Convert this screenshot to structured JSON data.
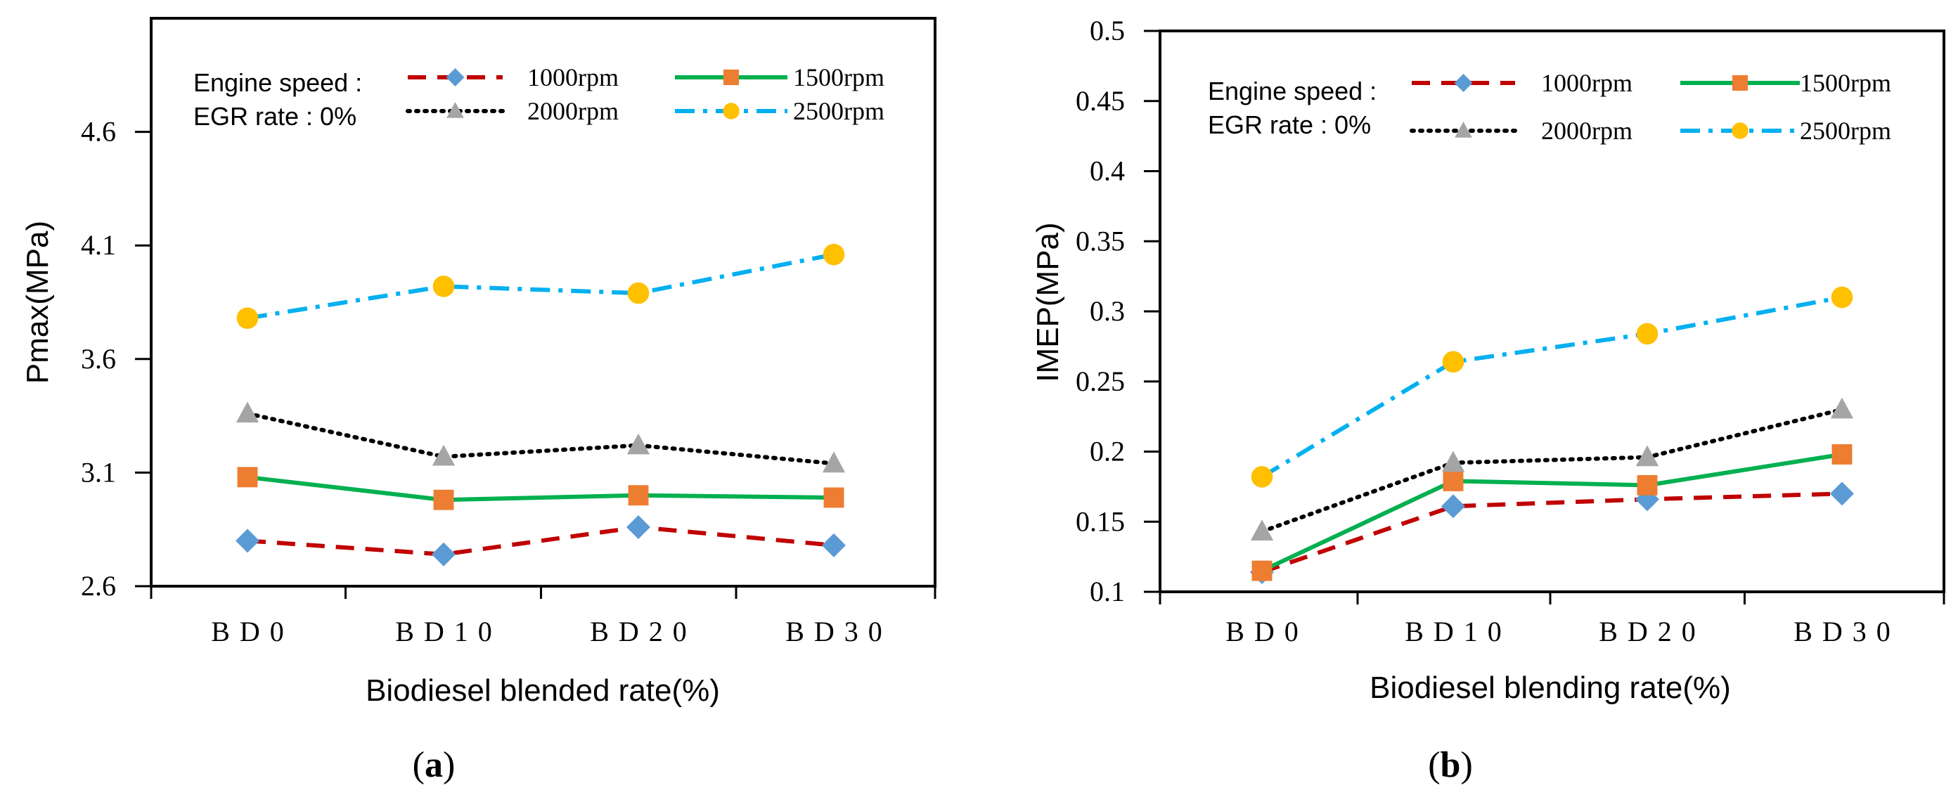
{
  "chart_data": [
    {
      "type": "line",
      "panel_label": "a",
      "xlabel": "Biodiesel blended rate(%)",
      "ylabel": "Pmax(MPa)",
      "categories": [
        "BD0",
        "BD10",
        "BD20",
        "BD30"
      ],
      "ylim": [
        2.6,
        5.1
      ],
      "yticks": [
        "2.6",
        "3.1",
        "3.6",
        "4.1",
        "4.6"
      ],
      "ytick_values": [
        2.6,
        3.1,
        3.6,
        4.1,
        4.6
      ],
      "legend": {
        "title_line1": "Engine speed :",
        "title_line2": "EGR rate : 0%"
      },
      "series": [
        {
          "name": "1000rpm",
          "values": [
            2.8,
            2.74,
            2.86,
            2.78
          ],
          "color": "#c00000",
          "marker": "diamond",
          "marker_color": "#5b9bd5",
          "dash": "long-dash"
        },
        {
          "name": "1500rpm",
          "values": [
            3.08,
            2.98,
            3.0,
            2.99
          ],
          "color": "#00b050",
          "marker": "square",
          "marker_color": "#ed7d31",
          "dash": "solid"
        },
        {
          "name": "2000rpm",
          "values": [
            3.36,
            3.17,
            3.22,
            3.14
          ],
          "color": "#000000",
          "marker": "triangle",
          "marker_color": "#a5a5a5",
          "dash": "dot"
        },
        {
          "name": "2500rpm",
          "values": [
            3.78,
            3.92,
            3.89,
            4.06
          ],
          "color": "#00b0f0",
          "marker": "circle",
          "marker_color": "#ffc000",
          "dash": "dash-dot"
        }
      ]
    },
    {
      "type": "line",
      "panel_label": "b",
      "xlabel": "Biodiesel blending rate(%)",
      "ylabel": "IMEP(MPa)",
      "categories": [
        "BD0",
        "BD10",
        "BD20",
        "BD30"
      ],
      "ylim": [
        0.1,
        0.5
      ],
      "yticks": [
        "0.1",
        "0.15",
        "0.2",
        "0.25",
        "0.3",
        "0.35",
        "0.4",
        "0.45",
        "0.5"
      ],
      "ytick_values": [
        0.1,
        0.15,
        0.2,
        0.25,
        0.3,
        0.35,
        0.4,
        0.45,
        0.5
      ],
      "legend": {
        "title_line1": "Engine speed :",
        "title_line2": "EGR rate : 0%"
      },
      "series": [
        {
          "name": "1000rpm",
          "values": [
            0.114,
            0.161,
            0.166,
            0.17
          ],
          "color": "#c00000",
          "marker": "diamond",
          "marker_color": "#5b9bd5",
          "dash": "long-dash"
        },
        {
          "name": "1500rpm",
          "values": [
            0.115,
            0.179,
            0.176,
            0.198
          ],
          "color": "#00b050",
          "marker": "square",
          "marker_color": "#ed7d31",
          "dash": "solid"
        },
        {
          "name": "2000rpm",
          "values": [
            0.143,
            0.192,
            0.196,
            0.23
          ],
          "color": "#000000",
          "marker": "triangle",
          "marker_color": "#a5a5a5",
          "dash": "dot"
        },
        {
          "name": "2500rpm",
          "values": [
            0.182,
            0.264,
            0.284,
            0.31
          ],
          "color": "#00b0f0",
          "marker": "circle",
          "marker_color": "#ffc000",
          "dash": "dash-dot"
        }
      ]
    }
  ]
}
